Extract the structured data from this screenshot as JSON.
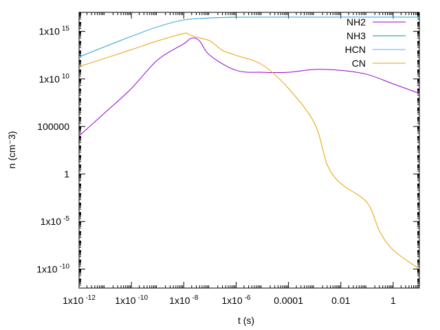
{
  "chart_data": {
    "type": "line",
    "xlabel": "t (s)",
    "ylabel": "n (cm^-3)",
    "ylabel_display": "n (cm⁻3)",
    "x_scale": "log",
    "y_scale": "log",
    "xlim": [
      1e-12,
      10
    ],
    "ylim": [
      1e-12,
      1e+17
    ],
    "grid": false,
    "legend_position": "top-right",
    "x_ticks": [
      {
        "value": 1e-12,
        "mantissa": "1x10",
        "exp": "-12"
      },
      {
        "value": 1e-10,
        "mantissa": "1x10",
        "exp": "-10"
      },
      {
        "value": 1e-08,
        "mantissa": "1x10",
        "exp": "-8"
      },
      {
        "value": 1e-06,
        "mantissa": "1x10",
        "exp": "-6"
      },
      {
        "value": 0.0001,
        "mantissa": "0.0001",
        "exp": ""
      },
      {
        "value": 0.01,
        "mantissa": "0.01",
        "exp": ""
      },
      {
        "value": 1,
        "mantissa": "1",
        "exp": ""
      }
    ],
    "y_ticks": [
      {
        "value": 1000000000000000.0,
        "mantissa": "1x10",
        "exp": "15"
      },
      {
        "value": 10000000000.0,
        "mantissa": "1x10",
        "exp": "10"
      },
      {
        "value": 100000.0,
        "mantissa": "100000",
        "exp": ""
      },
      {
        "value": 1,
        "mantissa": "1",
        "exp": ""
      },
      {
        "value": 1e-05,
        "mantissa": "1x10",
        "exp": "-5"
      },
      {
        "value": 1e-10,
        "mantissa": "1x10",
        "exp": "-10"
      }
    ],
    "series": [
      {
        "name": "NH2",
        "color": "#9400d3",
        "points": [
          [
            1e-12,
            10000.0
          ],
          [
            1e-11,
            3000000.0
          ],
          [
            1e-10,
            1000000000.0
          ],
          [
            1e-09,
            1000000000000.0
          ],
          [
            1e-08,
            50000000000000.0
          ],
          [
            2e-08,
            200000000000000.0
          ],
          [
            4e-08,
            100000000000000.0
          ],
          [
            1e-07,
            3000000000000.0
          ],
          [
            1e-06,
            80000000000.0
          ],
          [
            1e-05,
            50000000000.0
          ],
          [
            0.0001,
            50000000000.0
          ],
          [
            0.001,
            100000000000.0
          ],
          [
            0.01,
            80000000000.0
          ],
          [
            0.1,
            30000000000.0
          ],
          [
            1,
            3000000000.0
          ],
          [
            10,
            300000000.0
          ]
        ]
      },
      {
        "name": "NH3",
        "color": "#009e73",
        "points": [
          [
            1e-12,
            2100000000000.0
          ],
          [
            1e-11,
            26000000000000.0
          ],
          [
            1e-10,
            300000000000000.0
          ],
          [
            1e-09,
            3000000000000000.0
          ],
          [
            1e-08,
            1.6e+16
          ],
          [
            1e-07,
            2.6e+16
          ],
          [
            1e-06,
            3.1e+16
          ],
          [
            0.0001,
            3.2e+16
          ],
          [
            0.01,
            3.2e+16
          ],
          [
            1,
            3.2e+16
          ],
          [
            10,
            3.2e+16
          ]
        ]
      },
      {
        "name": "HCN",
        "color": "#56b4e9",
        "points": [
          [
            1e-12,
            2000000000000.0
          ],
          [
            1e-11,
            25000000000000.0
          ],
          [
            1e-10,
            300000000000000.0
          ],
          [
            1e-09,
            3000000000000000.0
          ],
          [
            1e-08,
            1.6e+16
          ],
          [
            1e-07,
            2.5e+16
          ],
          [
            1e-06,
            3e+16
          ],
          [
            0.0001,
            3.2e+16
          ],
          [
            0.01,
            3.2e+16
          ],
          [
            1,
            3.2e+16
          ],
          [
            10,
            3.2e+16
          ]
        ]
      },
      {
        "name": "CN",
        "color": "#e69f00",
        "points": [
          [
            1e-12,
            200000000000.0
          ],
          [
            1e-11,
            1500000000000.0
          ],
          [
            1e-10,
            12000000000000.0
          ],
          [
            1e-09,
            100000000000000.0
          ],
          [
            1e-08,
            600000000000000.0
          ],
          [
            1.5e-08,
            500000000000000.0
          ],
          [
            3e-08,
            250000000000000.0
          ],
          [
            1e-07,
            100000000000000.0
          ],
          [
            3e-07,
            10000000000000.0
          ],
          [
            1e-06,
            3000000000000.0
          ],
          [
            1e-05,
            300000000000.0
          ],
          [
            0.0001,
            1000000000.0
          ],
          [
            0.001,
            200000.0
          ],
          [
            0.003,
            10.0
          ],
          [
            0.01,
            0.1
          ],
          [
            0.1,
            0.001
          ],
          [
            0.3,
            1e-06
          ],
          [
            1,
            1e-08
          ],
          [
            10,
            1e-10
          ]
        ]
      }
    ]
  }
}
